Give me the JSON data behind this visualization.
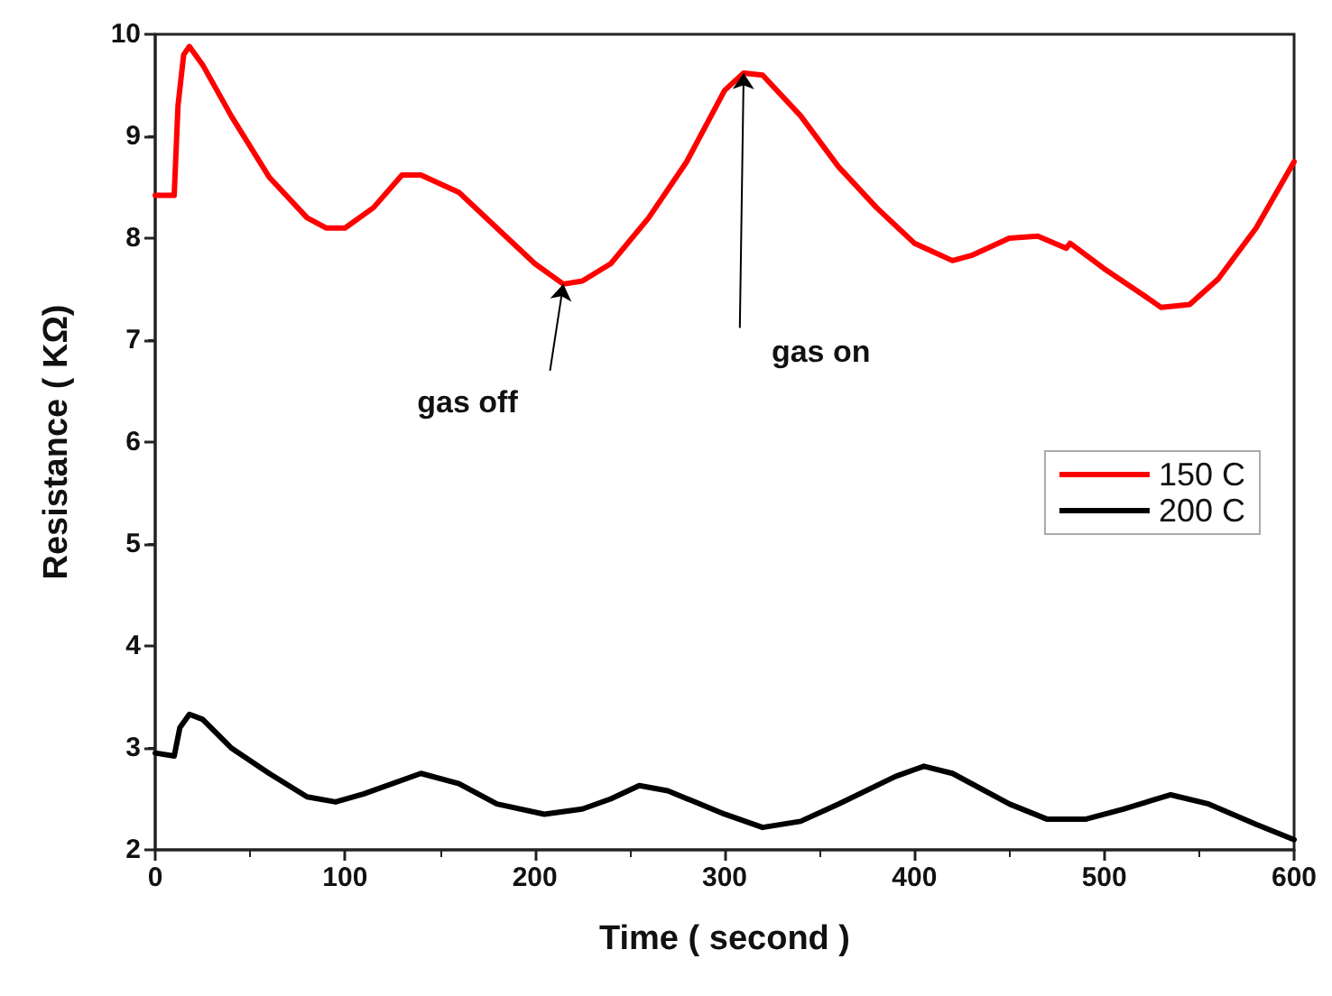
{
  "chart_data": {
    "type": "line",
    "xlabel": "Time ( second )",
    "ylabel": "Resistance ( KΩ)",
    "xlim": [
      0,
      600
    ],
    "xticks": [
      0,
      100,
      200,
      300,
      400,
      500,
      600
    ],
    "ylim": [
      2,
      10
    ],
    "yticks": [
      2,
      3,
      4,
      5,
      6,
      7,
      8,
      9,
      10
    ],
    "grid": false,
    "legend": "right",
    "marker": "none",
    "line_style": "solid",
    "annotations": [
      {
        "text": "gas off",
        "x": 215,
        "y": 7.55
      },
      {
        "text": "gas on",
        "x": 310,
        "y": 9.62
      }
    ],
    "series": [
      {
        "name": "150 C",
        "color": "#ff0000",
        "x": [
          0,
          10,
          12,
          15,
          18,
          25,
          40,
          60,
          80,
          90,
          100,
          115,
          130,
          140,
          160,
          180,
          200,
          215,
          225,
          240,
          260,
          280,
          300,
          310,
          320,
          340,
          360,
          380,
          400,
          420,
          430,
          450,
          465,
          480,
          482,
          500,
          520,
          530,
          545,
          560,
          580,
          600
        ],
        "values": [
          8.42,
          8.42,
          9.3,
          9.8,
          9.88,
          9.7,
          9.2,
          8.6,
          8.2,
          8.1,
          8.1,
          8.3,
          8.62,
          8.62,
          8.45,
          8.1,
          7.75,
          7.55,
          7.58,
          7.75,
          8.2,
          8.75,
          9.45,
          9.62,
          9.6,
          9.2,
          8.7,
          8.3,
          7.95,
          7.78,
          7.83,
          8.0,
          8.02,
          7.9,
          7.95,
          7.7,
          7.45,
          7.32,
          7.35,
          7.6,
          8.1,
          8.75
        ]
      },
      {
        "name": "200 C",
        "color": "#000000",
        "x": [
          0,
          10,
          13,
          18,
          25,
          40,
          60,
          80,
          95,
          110,
          140,
          160,
          180,
          205,
          225,
          240,
          255,
          270,
          300,
          320,
          340,
          360,
          390,
          405,
          420,
          450,
          470,
          490,
          510,
          535,
          555,
          580,
          600
        ],
        "values": [
          2.95,
          2.92,
          3.2,
          3.33,
          3.28,
          3.0,
          2.75,
          2.52,
          2.47,
          2.55,
          2.75,
          2.65,
          2.45,
          2.35,
          2.4,
          2.5,
          2.63,
          2.58,
          2.35,
          2.22,
          2.28,
          2.45,
          2.72,
          2.82,
          2.75,
          2.45,
          2.3,
          2.3,
          2.4,
          2.54,
          2.45,
          2.25,
          2.1
        ]
      }
    ]
  }
}
